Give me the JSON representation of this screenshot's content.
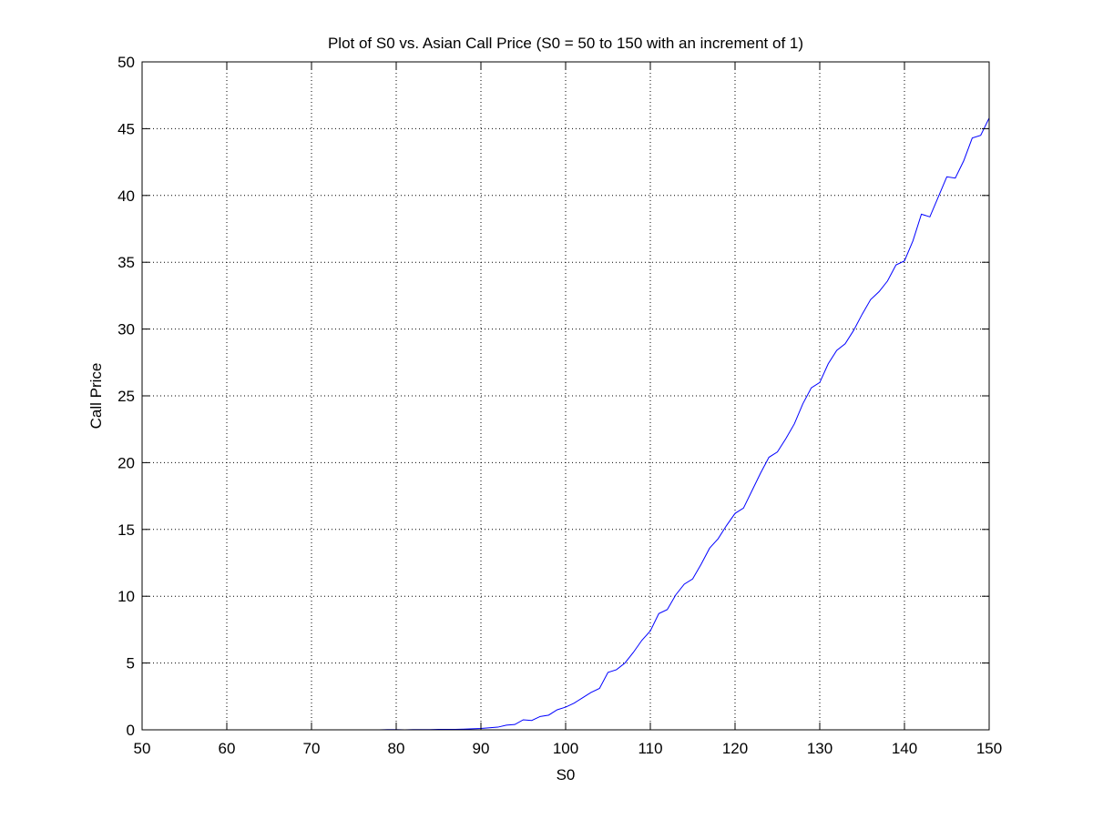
{
  "chart_data": {
    "type": "line",
    "title": "Plot of S0 vs. Asian Call Price (S0 = 50 to 150 with an increment of 1)",
    "xlabel": "S0",
    "ylabel": "Call Price",
    "xlim": [
      50,
      150
    ],
    "ylim": [
      0,
      50
    ],
    "xticks": [
      50,
      60,
      70,
      80,
      90,
      100,
      110,
      120,
      130,
      140,
      150
    ],
    "yticks": [
      0,
      5,
      10,
      15,
      20,
      25,
      30,
      35,
      40,
      45,
      50
    ],
    "grid": true,
    "line_color": "#0000ff",
    "series": [
      {
        "x": [
          50,
          51,
          52,
          53,
          54,
          55,
          56,
          57,
          58,
          59,
          60,
          61,
          62,
          63,
          64,
          65,
          66,
          67,
          68,
          69,
          70,
          71,
          72,
          73,
          74,
          75,
          76,
          77,
          78,
          79,
          80,
          81,
          82,
          83,
          84,
          85,
          86,
          87,
          88,
          89,
          90,
          91,
          92,
          93,
          94,
          95,
          96,
          97,
          98,
          99,
          100,
          101,
          102,
          103,
          104,
          105,
          106,
          107,
          108,
          109,
          110,
          111,
          112,
          113,
          114,
          115,
          116,
          117,
          118,
          119,
          120,
          121,
          122,
          123,
          124,
          125,
          126,
          127,
          128,
          129,
          130,
          131,
          132,
          133,
          134,
          135,
          136,
          137,
          138,
          139,
          140,
          141,
          142,
          143,
          144,
          145,
          146,
          147,
          148,
          149,
          150
        ],
        "values": [
          0,
          0,
          0,
          0,
          0,
          0,
          0,
          0,
          0,
          0,
          0,
          0,
          0,
          0,
          0,
          0,
          0,
          0,
          0,
          0,
          0,
          0,
          0,
          0,
          0,
          0,
          0,
          0,
          0,
          0.02,
          0.02,
          0,
          0.02,
          0.02,
          0.02,
          0.03,
          0.03,
          0.03,
          0.05,
          0.08,
          0.1,
          0.15,
          0.2,
          0.35,
          0.4,
          0.75,
          0.7,
          1.0,
          1.1,
          1.5,
          1.7,
          2.0,
          2.4,
          2.8,
          3.1,
          4.3,
          4.5,
          5.0,
          5.8,
          6.7,
          7.4,
          8.7,
          9.0,
          10.1,
          10.9,
          11.3,
          12.4,
          13.6,
          14.3,
          15.3,
          16.2,
          16.6,
          17.9,
          19.2,
          20.4,
          20.8,
          21.8,
          22.9,
          24.4,
          25.6,
          26.0,
          27.4,
          28.4,
          28.9,
          29.9,
          31.1,
          32.2,
          32.8,
          33.6,
          34.8,
          35.1,
          36.6,
          38.6,
          38.4,
          39.9,
          41.4,
          41.3,
          42.6,
          44.3,
          44.5,
          45.8
        ]
      }
    ]
  }
}
